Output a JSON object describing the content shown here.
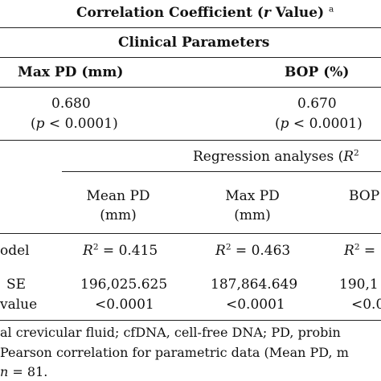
{
  "header": {
    "title_text": "Correlation Coefficient (",
    "title_r": "r",
    "title_value": " Value)",
    "title_sup": "a",
    "clinical_parameters": "Clinical Parameters",
    "col_max_pd": "Max PD (mm)",
    "col_bop": "BOP (%)"
  },
  "correlation_row": {
    "max_pd_value": "0.680",
    "max_pd_p_open": "(",
    "max_pd_p_italic": "p",
    "max_pd_p_rest": " < 0.0001)",
    "bop_value": "0.670",
    "bop_p_open": "(",
    "bop_p_italic": "p",
    "bop_p_rest": " < 0.0001)"
  },
  "regression": {
    "header_text": "Regression analyses (",
    "header_r": "R",
    "header_sup": "2",
    "col_mean_pd_l1": "Mean PD",
    "col_mean_pd_l2": "(mm)",
    "col_max_pd_l1": "Max PD",
    "col_max_pd_l2": "(mm)",
    "col_bop_l1": "BOP",
    "rows": [
      {
        "label": "odel",
        "r": "R",
        "sup": "2",
        "v1": " = 0.415",
        "v2": " = 0.463",
        "v3": " ="
      },
      {
        "label": "SE",
        "v1": "196,025.625",
        "v2": "187,864.649",
        "v3": "190,1"
      },
      {
        "label": "value",
        "v1": "<0.0001",
        "v2": "<0.0001",
        "v3": "<0.0"
      }
    ]
  },
  "footnotes": {
    "line1": "al crevicular fluid; cfDNA, cell-free DNA; PD, probin",
    "line2": "Pearson correlation for parametric data (Mean PD, m",
    "line3_n": "n",
    "line3_rest": " = 81."
  }
}
